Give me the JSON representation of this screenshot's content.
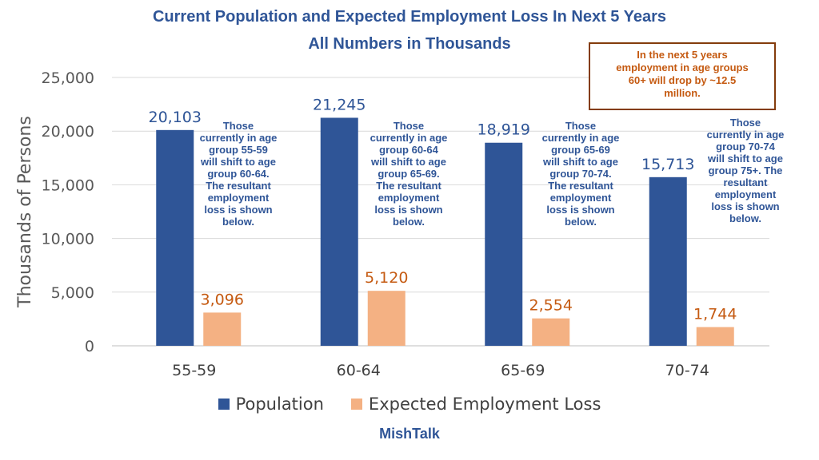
{
  "chart_data": {
    "type": "bar",
    "title": "Current Population and Expected Employment Loss In Next 5 Years",
    "subtitle": "All Numbers in Thousands",
    "ylabel": "Thousands of Persons",
    "xlabel": "",
    "categories": [
      "55-59",
      "60-64",
      "65-69",
      "70-74"
    ],
    "series": [
      {
        "name": "Population",
        "values": [
          20103,
          21245,
          18919,
          15713
        ],
        "labels": [
          "20,103",
          "21,245",
          "18,919",
          "15,713"
        ],
        "color": "#2f5597",
        "label_color": "#2f5597"
      },
      {
        "name": "Expected Employment Loss",
        "values": [
          3096,
          5120,
          2554,
          1744
        ],
        "labels": [
          "3,096",
          "5,120",
          "2,554",
          "1,744"
        ],
        "color": "#f4b183",
        "label_color": "#c55a11"
      }
    ],
    "ylim": [
      0,
      25000
    ],
    "yticks": [
      0,
      5000,
      10000,
      15000,
      20000,
      25000
    ],
    "ytick_labels": [
      "0",
      "5,000",
      "10,000",
      "15,000",
      "20,000",
      "25,000"
    ],
    "grid": true,
    "legend_position": "bottom",
    "annotations": [
      "Those\ncurrently in age\ngroup 55-59\nwill shift to age\ngroup 60-64.\nThe resultant\nemployment\nloss is shown\nbelow.",
      "Those\ncurrently in age\ngroup 60-64\nwill shift to age\ngroup 65-69.\nThe resultant\nemployment\nloss is shown\nbelow.",
      "Those\ncurrently in age\ngroup 65-69\nwill shift to age\ngroup 70-74.\nThe resultant\nemployment\nloss is shown\nbelow.",
      "Those\ncurrently in age\ngroup 70-74\nwill shift to age\ngroup 75+. The\nresultant\nemployment\nloss is shown\nbelow."
    ],
    "callout": "In the next 5 years\nemployment in age groups\n60+ will drop by ~12.5\nmillion."
  },
  "credit": "MishTalk"
}
